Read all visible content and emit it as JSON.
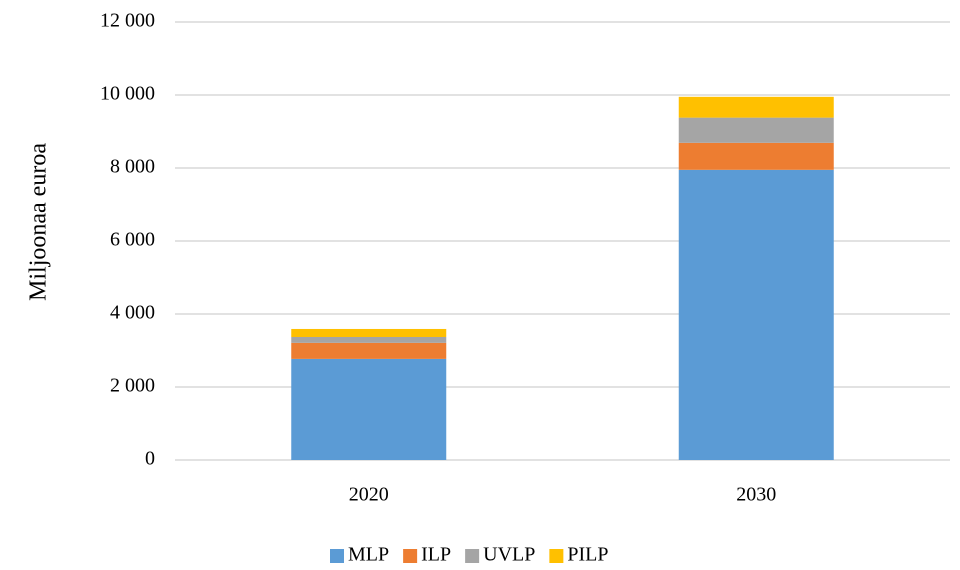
{
  "chart_data": {
    "type": "bar",
    "stacked": true,
    "y_label": "Miljoonaa euroa",
    "categories": [
      "2020",
      "2030"
    ],
    "series": [
      {
        "name": "MLP",
        "color": "#5b9bd5",
        "values": [
          2770,
          7950
        ]
      },
      {
        "name": "ILP",
        "color": "#ed7d31",
        "values": [
          440,
          740
        ]
      },
      {
        "name": "UVLP",
        "color": "#a5a5a5",
        "values": [
          160,
          690
        ]
      },
      {
        "name": "PILP",
        "color": "#ffc000",
        "values": [
          220,
          570
        ]
      }
    ],
    "ylim": [
      0,
      12000
    ],
    "yticks": [
      0,
      {
        "value": 2000,
        "label": "2 000"
      },
      {
        "value": 4000,
        "label": "4 000"
      },
      {
        "value": 6000,
        "label": "6 000"
      },
      {
        "value": 8000,
        "label": "8 000"
      },
      {
        "value": 10000,
        "label": "10 000"
      },
      {
        "value": 12000,
        "label": "12 000"
      }
    ],
    "grid": true,
    "legend": "bottom"
  }
}
